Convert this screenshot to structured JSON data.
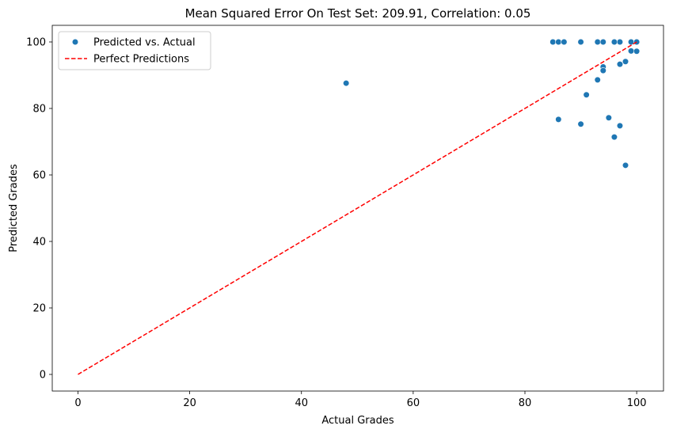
{
  "chart_data": {
    "type": "scatter",
    "title": "Mean Squared Error On Test Set: 209.91, Correlation: 0.05",
    "xlabel": "Actual Grades",
    "ylabel": "Predicted Grades",
    "xlim": [
      -4.6,
      104.8
    ],
    "ylim": [
      -5,
      105
    ],
    "xticks": [
      0,
      20,
      40,
      60,
      80,
      100
    ],
    "yticks": [
      0,
      20,
      40,
      60,
      80,
      100
    ],
    "grid": false,
    "legend_position": "top-left",
    "series": [
      {
        "name": "Predicted vs. Actual",
        "kind": "scatter",
        "color": "#1f77b4",
        "points": [
          {
            "x": 48,
            "y": 87.6
          },
          {
            "x": 85,
            "y": 100
          },
          {
            "x": 86,
            "y": 100
          },
          {
            "x": 87,
            "y": 100
          },
          {
            "x": 90,
            "y": 100
          },
          {
            "x": 93,
            "y": 100
          },
          {
            "x": 94,
            "y": 100
          },
          {
            "x": 96,
            "y": 100
          },
          {
            "x": 97,
            "y": 100
          },
          {
            "x": 99,
            "y": 100
          },
          {
            "x": 100,
            "y": 100
          },
          {
            "x": 99,
            "y": 97.3
          },
          {
            "x": 100,
            "y": 97.2
          },
          {
            "x": 98,
            "y": 94.1
          },
          {
            "x": 97,
            "y": 93.3
          },
          {
            "x": 94,
            "y": 92.5
          },
          {
            "x": 94,
            "y": 91.4
          },
          {
            "x": 93,
            "y": 88.6
          },
          {
            "x": 91,
            "y": 84.1
          },
          {
            "x": 86,
            "y": 76.7
          },
          {
            "x": 90,
            "y": 75.3
          },
          {
            "x": 95,
            "y": 77.2
          },
          {
            "x": 97,
            "y": 74.8
          },
          {
            "x": 96,
            "y": 71.4
          },
          {
            "x": 98,
            "y": 62.9
          }
        ]
      },
      {
        "name": "Perfect Predictions",
        "kind": "line",
        "style": "dashed",
        "color": "#ff0000",
        "x": [
          0,
          100
        ],
        "y": [
          0,
          100
        ]
      }
    ]
  }
}
